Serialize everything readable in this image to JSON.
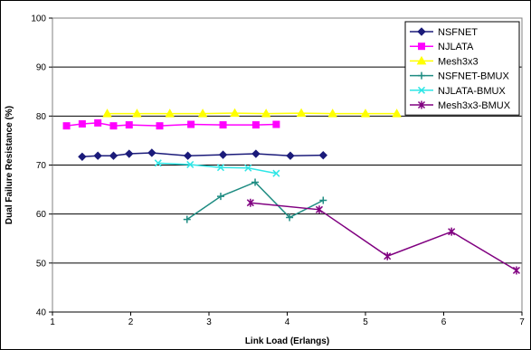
{
  "chart_data": {
    "type": "line",
    "title": "",
    "xlabel": "Link Load (Erlangs)",
    "ylabel": "Dual Failure Resistance (%)",
    "xlim": [
      1,
      7
    ],
    "ylim": [
      40,
      100
    ],
    "xticks": [
      1,
      2,
      3,
      4,
      5,
      6,
      7
    ],
    "yticks": [
      40,
      50,
      60,
      70,
      80,
      90,
      100
    ],
    "grid": "horizontal",
    "legend_position": "top-right",
    "series": [
      {
        "name": "NSFNET",
        "color": "#1b1b7a",
        "marker": "diamond",
        "x": [
          1.38,
          1.58,
          1.78,
          1.98,
          2.27,
          2.73,
          3.18,
          3.6,
          4.04,
          4.46
        ],
        "y": [
          71.7,
          71.9,
          71.9,
          72.3,
          72.5,
          71.9,
          72.1,
          72.3,
          71.9,
          72.0
        ]
      },
      {
        "name": "NJLATA",
        "color": "#ff00ff",
        "marker": "square",
        "x": [
          1.18,
          1.38,
          1.58,
          1.78,
          1.98,
          2.37,
          2.77,
          3.18,
          3.6,
          3.86
        ],
        "y": [
          78.0,
          78.4,
          78.6,
          78.0,
          78.2,
          78.0,
          78.3,
          78.2,
          78.2,
          78.3
        ]
      },
      {
        "name": "Mesh3x3",
        "color": "#ffff00",
        "marker": "triangle",
        "x": [
          1.7,
          2.08,
          2.5,
          2.92,
          3.33,
          3.73,
          4.18,
          4.58,
          5.0,
          5.4
        ],
        "y": [
          80.5,
          80.5,
          80.5,
          80.5,
          80.6,
          80.5,
          80.6,
          80.5,
          80.5,
          80.5
        ]
      },
      {
        "name": "NSFNET-BMUX",
        "color": "#1e8c82",
        "marker": "plus",
        "x": [
          2.72,
          3.15,
          3.59,
          4.03,
          4.46
        ],
        "y": [
          58.9,
          63.6,
          66.5,
          59.3,
          62.8
        ]
      },
      {
        "name": "NJLATA-BMUX",
        "color": "#2ee6e6",
        "marker": "x",
        "x": [
          2.35,
          2.76,
          3.15,
          3.5,
          3.86
        ],
        "y": [
          70.4,
          70.1,
          69.5,
          69.4,
          68.3
        ]
      },
      {
        "name": "Mesh3x3-BMUX",
        "color": "#800080",
        "marker": "asterisk",
        "x": [
          3.53,
          4.41,
          5.28,
          6.1,
          6.93
        ],
        "y": [
          62.3,
          60.9,
          51.4,
          56.4,
          48.5
        ]
      }
    ]
  }
}
